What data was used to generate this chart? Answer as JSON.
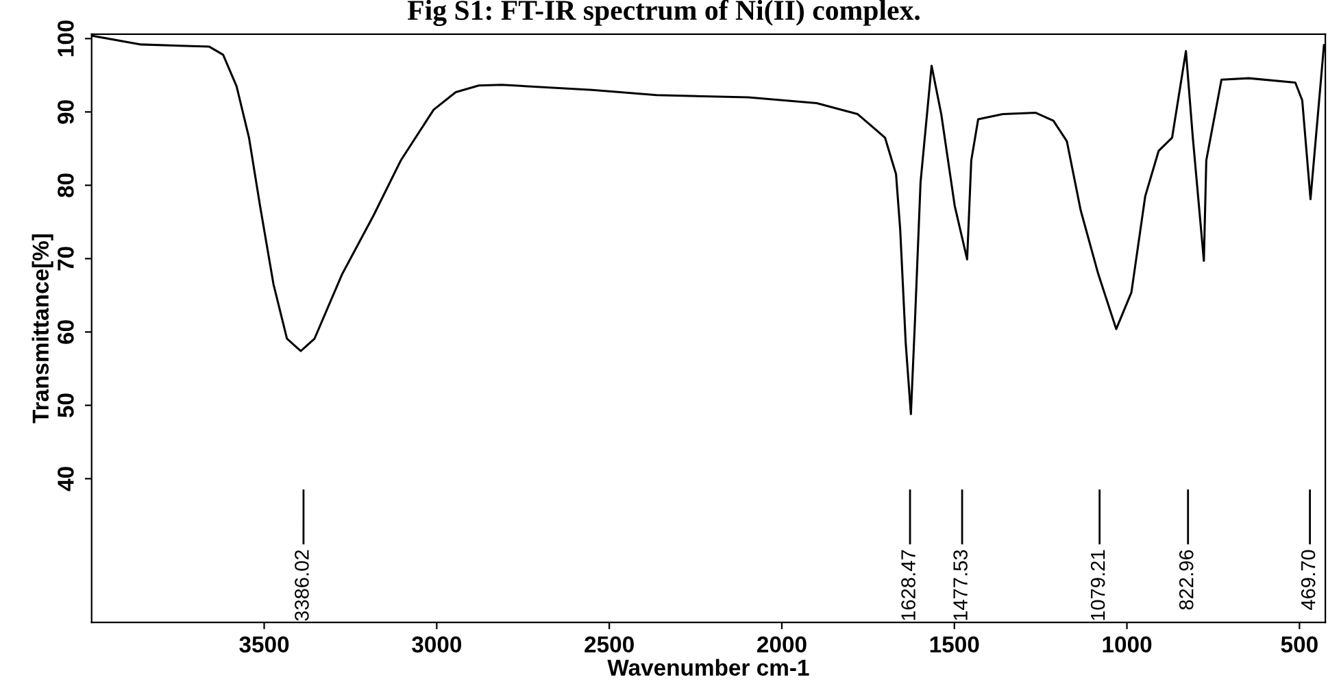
{
  "chart_data": {
    "type": "line",
    "title": "Fig S1: FT-IR spectrum of Ni(II) complex.",
    "xlabel": "Wavenumber cm-1",
    "ylabel": "Transmittance[%]",
    "xlim": [
      4000,
      425
    ],
    "ylim": [
      20.4,
      100.6
    ],
    "xticks": [
      3500,
      3000,
      2500,
      2000,
      1500,
      1000,
      500
    ],
    "yticks": [
      40,
      50,
      60,
      70,
      80,
      90,
      100
    ],
    "grid": false,
    "legend": false,
    "marker": "none",
    "line_style": "solid",
    "series": [
      {
        "color": "#000000",
        "x": [
          4000,
          3857,
          3659,
          3619,
          3580,
          3544,
          3512,
          3473,
          3434,
          3394,
          3354,
          3274,
          3183,
          3104,
          3009,
          2945,
          2878,
          2811,
          2549,
          2363,
          2284,
          2097,
          1899,
          1780,
          1701,
          1669,
          1657,
          1641,
          1626,
          1614,
          1598,
          1566,
          1538,
          1499,
          1463,
          1451,
          1431,
          1360,
          1265,
          1213,
          1174,
          1134,
          1083,
          1031,
          987,
          947,
          908,
          869,
          829,
          809,
          777,
          770,
          726,
          647,
          512,
          492,
          468,
          429
        ],
        "values": [
          100.4,
          99.2,
          98.9,
          97.8,
          93.5,
          86.5,
          77.2,
          66.5,
          59.1,
          57.4,
          59.1,
          67.9,
          75.9,
          83.4,
          90.3,
          92.7,
          93.6,
          93.7,
          93.0,
          92.3,
          92.2,
          92.0,
          91.2,
          89.7,
          86.5,
          81.5,
          74.0,
          58.5,
          48.8,
          61.7,
          80.4,
          96.3,
          89.7,
          77.2,
          69.9,
          83.4,
          89.0,
          89.7,
          89.9,
          88.8,
          86.0,
          76.6,
          67.9,
          60.4,
          65.4,
          78.5,
          84.7,
          86.5,
          98.3,
          86.5,
          69.7,
          83.4,
          94.4,
          94.6,
          94.0,
          91.6,
          78.1,
          99.1
        ]
      }
    ],
    "ref_lines": [
      {
        "axis": "x",
        "value": 3386.02,
        "label": "3386.02"
      },
      {
        "axis": "x",
        "value": 1628.47,
        "label": "1628.47"
      },
      {
        "axis": "x",
        "value": 1477.53,
        "label": "1477.53"
      },
      {
        "axis": "x",
        "value": 1079.21,
        "label": "1079.21"
      },
      {
        "axis": "x",
        "value": 822.96,
        "label": "822.96"
      },
      {
        "axis": "x",
        "value": 469.7,
        "label": "469.70"
      }
    ]
  }
}
